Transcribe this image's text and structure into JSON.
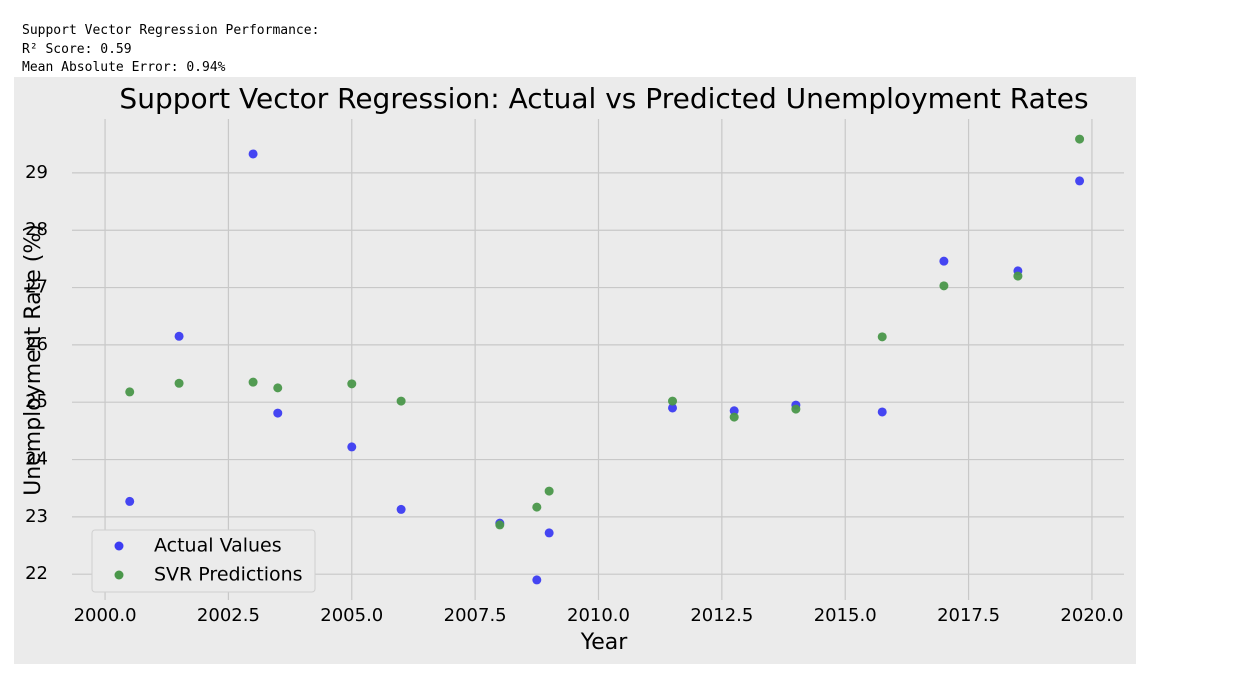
{
  "console_output": [
    "Support Vector Regression Performance:",
    "R² Score: 0.59",
    "Mean Absolute Error: 0.94%"
  ],
  "chart_data": {
    "type": "scatter",
    "title": "Support Vector Regression: Actual vs Predicted Unemployment Rates",
    "x_label": "Year",
    "y_label": "Unemployment Rate (%)",
    "x": [
      2000.5,
      2001.5,
      2003.0,
      2003.5,
      2005.0,
      2006.0,
      2008.0,
      2008.75,
      2009.0,
      2011.5,
      2012.75,
      2014.0,
      2015.75,
      2017.0,
      2018.5,
      2019.75
    ],
    "series": [
      {
        "name": "Actual Values",
        "color": "#3c3cf2",
        "values": [
          23.27,
          26.15,
          29.33,
          24.81,
          24.22,
          23.13,
          22.89,
          21.9,
          22.72,
          24.9,
          24.85,
          24.95,
          24.83,
          27.46,
          27.29,
          28.86
        ]
      },
      {
        "name": "SVR Predictions",
        "color": "#4a974a",
        "values": [
          25.18,
          25.33,
          25.35,
          25.25,
          25.32,
          25.02,
          22.86,
          23.17,
          23.45,
          25.02,
          24.74,
          24.88,
          26.14,
          27.03,
          27.2,
          29.59
        ]
      }
    ],
    "xlim": [
      1999.33,
      2020.65
    ],
    "ylim": [
      21.55,
      29.94
    ],
    "xticks": [
      {
        "value": 2000,
        "label": "2000.0"
      },
      {
        "value": 2002.5,
        "label": "2002.5"
      },
      {
        "value": 2005,
        "label": "2005.0"
      },
      {
        "value": 2007.5,
        "label": "2007.5"
      },
      {
        "value": 2010,
        "label": "2010.0"
      },
      {
        "value": 2012.5,
        "label": "2012.5"
      },
      {
        "value": 2015,
        "label": "2015.0"
      },
      {
        "value": 2017.5,
        "label": "2017.5"
      },
      {
        "value": 2020,
        "label": "2020.0"
      }
    ],
    "yticks": [
      22,
      23,
      24,
      25,
      26,
      27,
      28,
      29
    ],
    "grid": true,
    "legend": "lower left"
  }
}
